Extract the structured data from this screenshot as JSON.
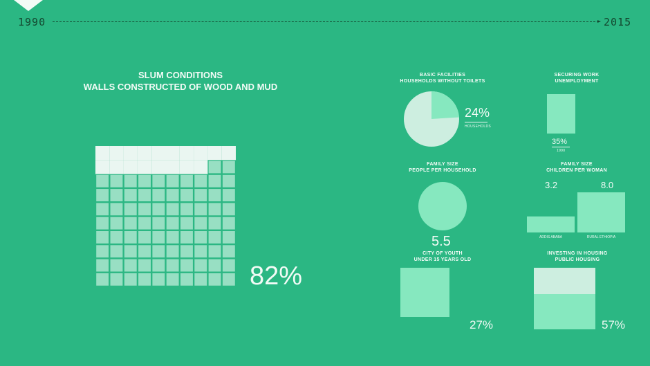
{
  "timeline": {
    "start": "1990",
    "end": "2015"
  },
  "colors": {
    "background": "#2bb783",
    "light": "#eaf6f1",
    "mint": "#86e8bf",
    "pale": "#cdeee0"
  },
  "chart_data": [
    {
      "id": "walls",
      "type": "waffle",
      "title": "SLUM CONDITIONS",
      "subtitle": "WALLS CONSTRUCTED OF WOOD AND MUD",
      "value_percent": 82,
      "value_label": "82%"
    },
    {
      "id": "toilets",
      "type": "pie",
      "title": "BASIC FACILITIES",
      "subtitle": "HOUSEHOLDS WITHOUT TOILETS",
      "value_percent": 24,
      "value_label": "24%",
      "caption": "HOUSEHOLDS"
    },
    {
      "id": "unemployment",
      "type": "bar",
      "title": "SECURING WORK",
      "subtitle": "UNEMPLOYMENT",
      "value_percent": 35,
      "value_label": "35%",
      "caption": "1990"
    },
    {
      "id": "household",
      "type": "circle",
      "title": "FAMILY SIZE",
      "subtitle": "PEOPLE PER HOUSEHOLD",
      "value": 5.5,
      "value_label": "5.5"
    },
    {
      "id": "children",
      "type": "bar",
      "title": "FAMILY SIZE",
      "subtitle": "CHILDREN PER WOMAN",
      "categories": [
        "ADDIS ABABA",
        "RURAL ETHIOPIA"
      ],
      "values": [
        3.2,
        8.0
      ],
      "value_labels": [
        "3.2",
        "8.0"
      ]
    },
    {
      "id": "youth",
      "type": "square",
      "title": "CITY OF YOUTH",
      "subtitle": "UNDER 15 YEARS OLD",
      "value_percent": 27,
      "value_label": "27%"
    },
    {
      "id": "housing",
      "type": "stacked-square",
      "title": "INVESTING IN HOUSING",
      "subtitle": "PUBLIC HOUSING",
      "value_percent": 57,
      "value_label": "57%"
    }
  ]
}
